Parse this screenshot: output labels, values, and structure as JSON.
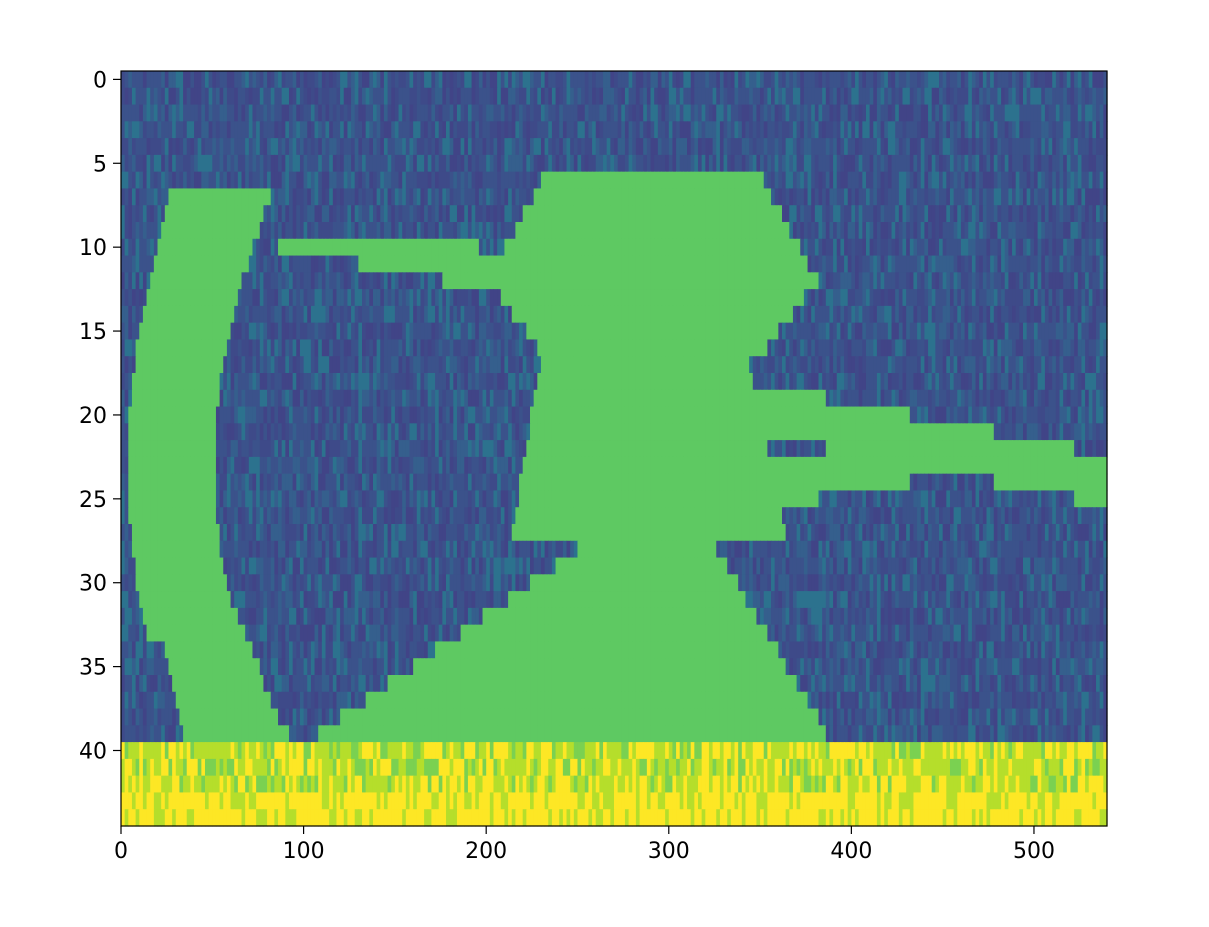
{
  "chart_data": {
    "type": "heatmap",
    "title": "",
    "xlabel": "",
    "ylabel": "",
    "xlim": [
      0,
      540
    ],
    "ylim": [
      0,
      44
    ],
    "y_inverted": true,
    "x_ticks": [
      0,
      100,
      200,
      300,
      400,
      500
    ],
    "x_tick_labels": [
      "0",
      "100",
      "200",
      "300",
      "400",
      "500"
    ],
    "y_ticks": [
      0,
      5,
      10,
      15,
      20,
      25,
      30,
      35,
      40
    ],
    "y_tick_labels": [
      "0",
      "5",
      "10",
      "15",
      "20",
      "25",
      "30",
      "35",
      "40"
    ],
    "colormap": "viridis",
    "colors": {
      "background_cell": "#3b528b",
      "shape_cell": "#5ec962",
      "high_cell": "#fde725",
      "mid_cell": "#b5de2b"
    },
    "grid": false,
    "rows": 45,
    "columns": 540,
    "regions": [
      {
        "name": "left arc",
        "rows": [
          7,
          39
        ],
        "value": "mid"
      },
      {
        "name": "upper left streak",
        "rows": [
          10,
          16
        ],
        "value": "mid"
      },
      {
        "name": "central figure",
        "rows": [
          6,
          39
        ],
        "value": "mid"
      },
      {
        "name": "right streak",
        "rows": [
          18,
          26
        ],
        "value": "mid"
      },
      {
        "name": "bottom band",
        "rows": [
          40,
          44
        ],
        "value": "high"
      }
    ]
  }
}
